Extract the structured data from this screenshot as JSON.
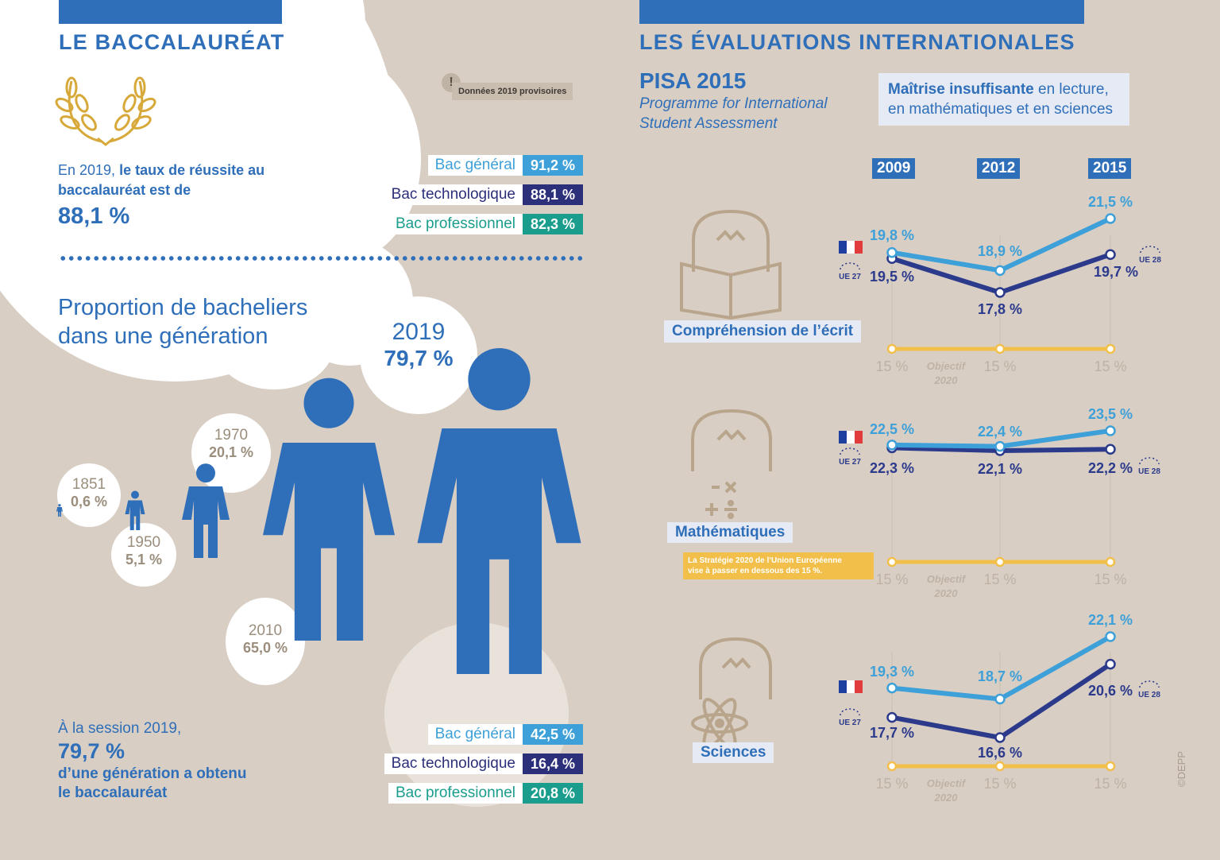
{
  "left": {
    "title": "LE BACCALAURÉAT",
    "note": "Données 2019 provisoires",
    "note_mark": "!",
    "intro_prefix": "En 2019, ",
    "intro_bold": "le taux de réussite au baccalauréat est de",
    "intro_value": "88,1 %",
    "success_rates": [
      {
        "label": "Bac général",
        "value": "91,2 %",
        "color": "#3ea0d8"
      },
      {
        "label": "Bac technologique",
        "value": "88,1 %",
        "color": "#2c2f7a"
      },
      {
        "label": "Bac professionnel",
        "value": "82,3 %",
        "color": "#1a9d8c"
      }
    ],
    "proportion_title_1": "Proportion de bacheliers",
    "proportion_title_2": "dans une génération",
    "generations": [
      {
        "year": "1851",
        "value": "0,6 %"
      },
      {
        "year": "1950",
        "value": "5,1 %"
      },
      {
        "year": "1970",
        "value": "20,1 %"
      },
      {
        "year": "2010",
        "value": "65,0 %"
      },
      {
        "year": "2019",
        "value": "79,7 %"
      }
    ],
    "session_prefix": "À la session 2019,",
    "session_value": "79,7 %",
    "session_text_1": "d’une génération a obtenu",
    "session_text_2": "le baccalauréat",
    "generation_rates": [
      {
        "label": "Bac général",
        "value": "42,5 %",
        "color": "#3ea0d8"
      },
      {
        "label": "Bac technologique",
        "value": "16,4 %",
        "color": "#2c2f7a"
      },
      {
        "label": "Bac professionnel",
        "value": "20,8 %",
        "color": "#1a9d8c"
      }
    ]
  },
  "right": {
    "title": "LES ÉVALUATIONS INTERNATIONALES",
    "pisa_title": "PISA 2015",
    "pisa_sub_1": "Programme for International",
    "pisa_sub_2": "Student Assessment",
    "legend_bold": "Maîtrise insuffisante",
    "legend_rest_1": " en lecture,",
    "legend_rest_2": "en mathématiques et en sciences",
    "years": [
      "2009",
      "2012",
      "2015"
    ],
    "objective_label": "15 %",
    "objective_word_1": "Objectif",
    "objective_word_2": "2020",
    "ue27": "UE 27",
    "ue28": "UE 28",
    "strategy_note_1": "La Stratégie 2020 de l’Union Européenne",
    "strategy_note_2": "vise à passer en dessous des 15 %.",
    "copyright": "©DEPP",
    "colors": {
      "france": "#3ea0d8",
      "ue": "#2c3a8c",
      "objective": "#f2c04a"
    }
  },
  "chart_data": [
    {
      "type": "line",
      "title": "Compréhension de l’écrit",
      "x": [
        "2009",
        "2012",
        "2015"
      ],
      "series": [
        {
          "name": "France",
          "values": [
            19.8,
            18.9,
            21.5
          ],
          "labels": [
            "19,8 %",
            "18,9 %",
            "21,5 %"
          ]
        },
        {
          "name": "UE",
          "values": [
            19.5,
            17.8,
            19.7
          ],
          "labels": [
            "19,5 %",
            "17,8 %",
            "19,7 %"
          ]
        },
        {
          "name": "Objectif 2020",
          "values": [
            15,
            15,
            15
          ]
        }
      ]
    },
    {
      "type": "line",
      "title": "Mathématiques",
      "x": [
        "2009",
        "2012",
        "2015"
      ],
      "series": [
        {
          "name": "France",
          "values": [
            22.5,
            22.4,
            23.5
          ],
          "labels": [
            "22,5 %",
            "22,4 %",
            "23,5 %"
          ]
        },
        {
          "name": "UE",
          "values": [
            22.3,
            22.1,
            22.2
          ],
          "labels": [
            "22,3 %",
            "22,1 %",
            "22,2 %"
          ]
        },
        {
          "name": "Objectif 2020",
          "values": [
            15,
            15,
            15
          ]
        }
      ]
    },
    {
      "type": "line",
      "title": "Sciences",
      "x": [
        "2009",
        "2012",
        "2015"
      ],
      "series": [
        {
          "name": "France",
          "values": [
            19.3,
            18.7,
            22.1
          ],
          "labels": [
            "19,3 %",
            "18,7 %",
            "22,1 %"
          ]
        },
        {
          "name": "UE",
          "values": [
            17.7,
            16.6,
            20.6
          ],
          "labels": [
            "17,7 %",
            "16,6 %",
            "20,6 %"
          ]
        },
        {
          "name": "Objectif 2020",
          "values": [
            15,
            15,
            15
          ]
        }
      ]
    }
  ]
}
